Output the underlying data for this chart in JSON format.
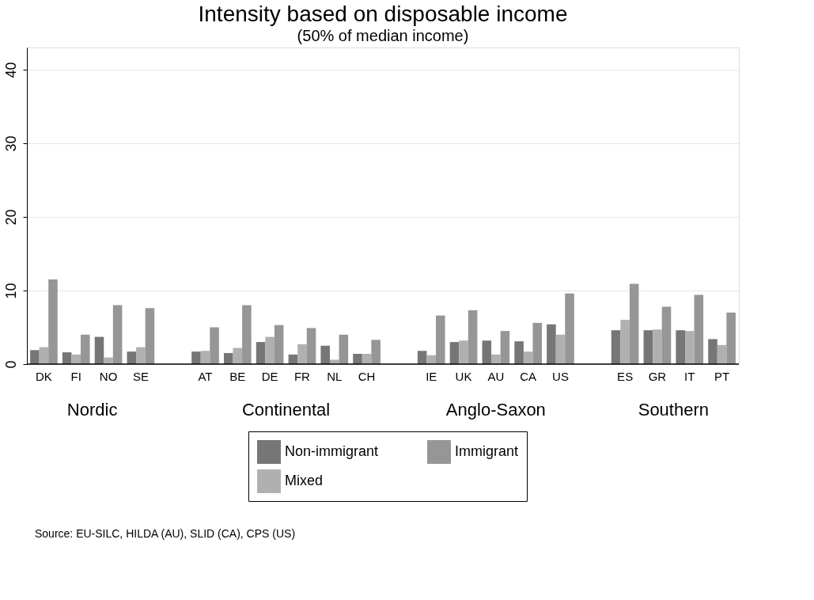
{
  "chart_data": {
    "type": "bar",
    "title": "Intensity based on disposable income",
    "subtitle": "(50% of median income)",
    "categories": [
      "DK",
      "FI",
      "NO",
      "SE",
      null,
      "AT",
      "BE",
      "DE",
      "FR",
      "NL",
      "CH",
      null,
      "IE",
      "UK",
      "AU",
      "CA",
      "US",
      null,
      "ES",
      "GR",
      "IT",
      "PT"
    ],
    "series": [
      {
        "name": "Non-immigrant",
        "color": "#767676",
        "values": [
          1.9,
          1.6,
          3.7,
          1.7,
          null,
          1.7,
          1.5,
          3.0,
          1.3,
          2.5,
          1.4,
          null,
          1.8,
          3.0,
          3.2,
          3.1,
          5.4,
          null,
          4.6,
          4.6,
          4.6,
          3.4
        ]
      },
      {
        "name": "Mixed",
        "color": "#b0b0b0",
        "values": [
          2.3,
          1.3,
          0.9,
          2.3,
          null,
          1.8,
          2.2,
          3.7,
          2.7,
          0.6,
          1.4,
          null,
          1.2,
          3.2,
          1.3,
          1.7,
          4.0,
          null,
          6.0,
          4.7,
          4.5,
          2.6
        ]
      },
      {
        "name": "Immigrant",
        "color": "#969696",
        "values": [
          11.5,
          4.0,
          8.0,
          7.6,
          null,
          5.0,
          8.0,
          5.3,
          4.9,
          4.0,
          3.3,
          null,
          6.6,
          7.3,
          4.5,
          5.6,
          9.6,
          null,
          10.9,
          7.8,
          9.4,
          7.0
        ]
      }
    ],
    "ylim": [
      0,
      43
    ],
    "yticks": [
      0,
      10,
      20,
      30,
      40
    ],
    "grid": "y",
    "legend": "bottom",
    "annotations": [
      "Nordic",
      "Continental",
      "Anglo-Saxon",
      "Southern",
      "Source: EU-SILC, HILDA (AU), SLID (CA), CPS (US)"
    ]
  }
}
